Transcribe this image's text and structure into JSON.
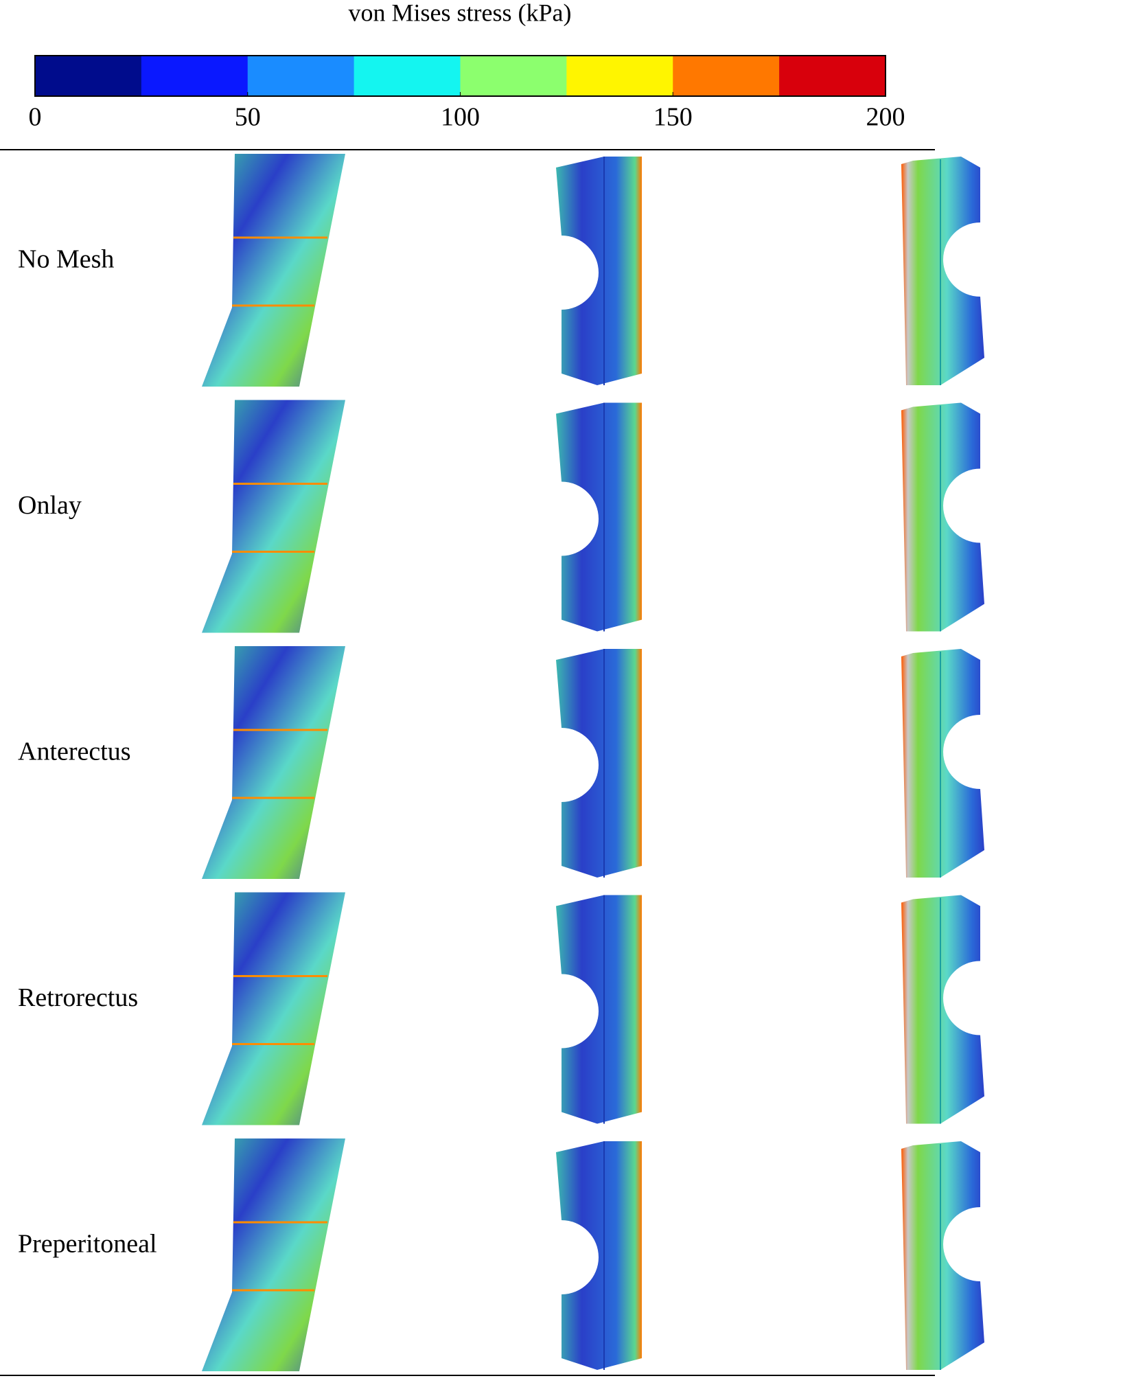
{
  "colorbar": {
    "title": "von Mises stress (kPa)",
    "lim": [
      0,
      200
    ],
    "ticks": [
      0,
      50,
      100,
      150,
      200
    ],
    "colors": [
      "#000c8c",
      "#0a18ff",
      "#1a8cff",
      "#14f5f0",
      "#8cff6e",
      "#fff500",
      "#ff7800",
      "#d8000c"
    ]
  },
  "rows": [
    "No Mesh",
    "Onlay",
    "Anterectus",
    "Retrorectus",
    "Preperitoneal"
  ]
}
